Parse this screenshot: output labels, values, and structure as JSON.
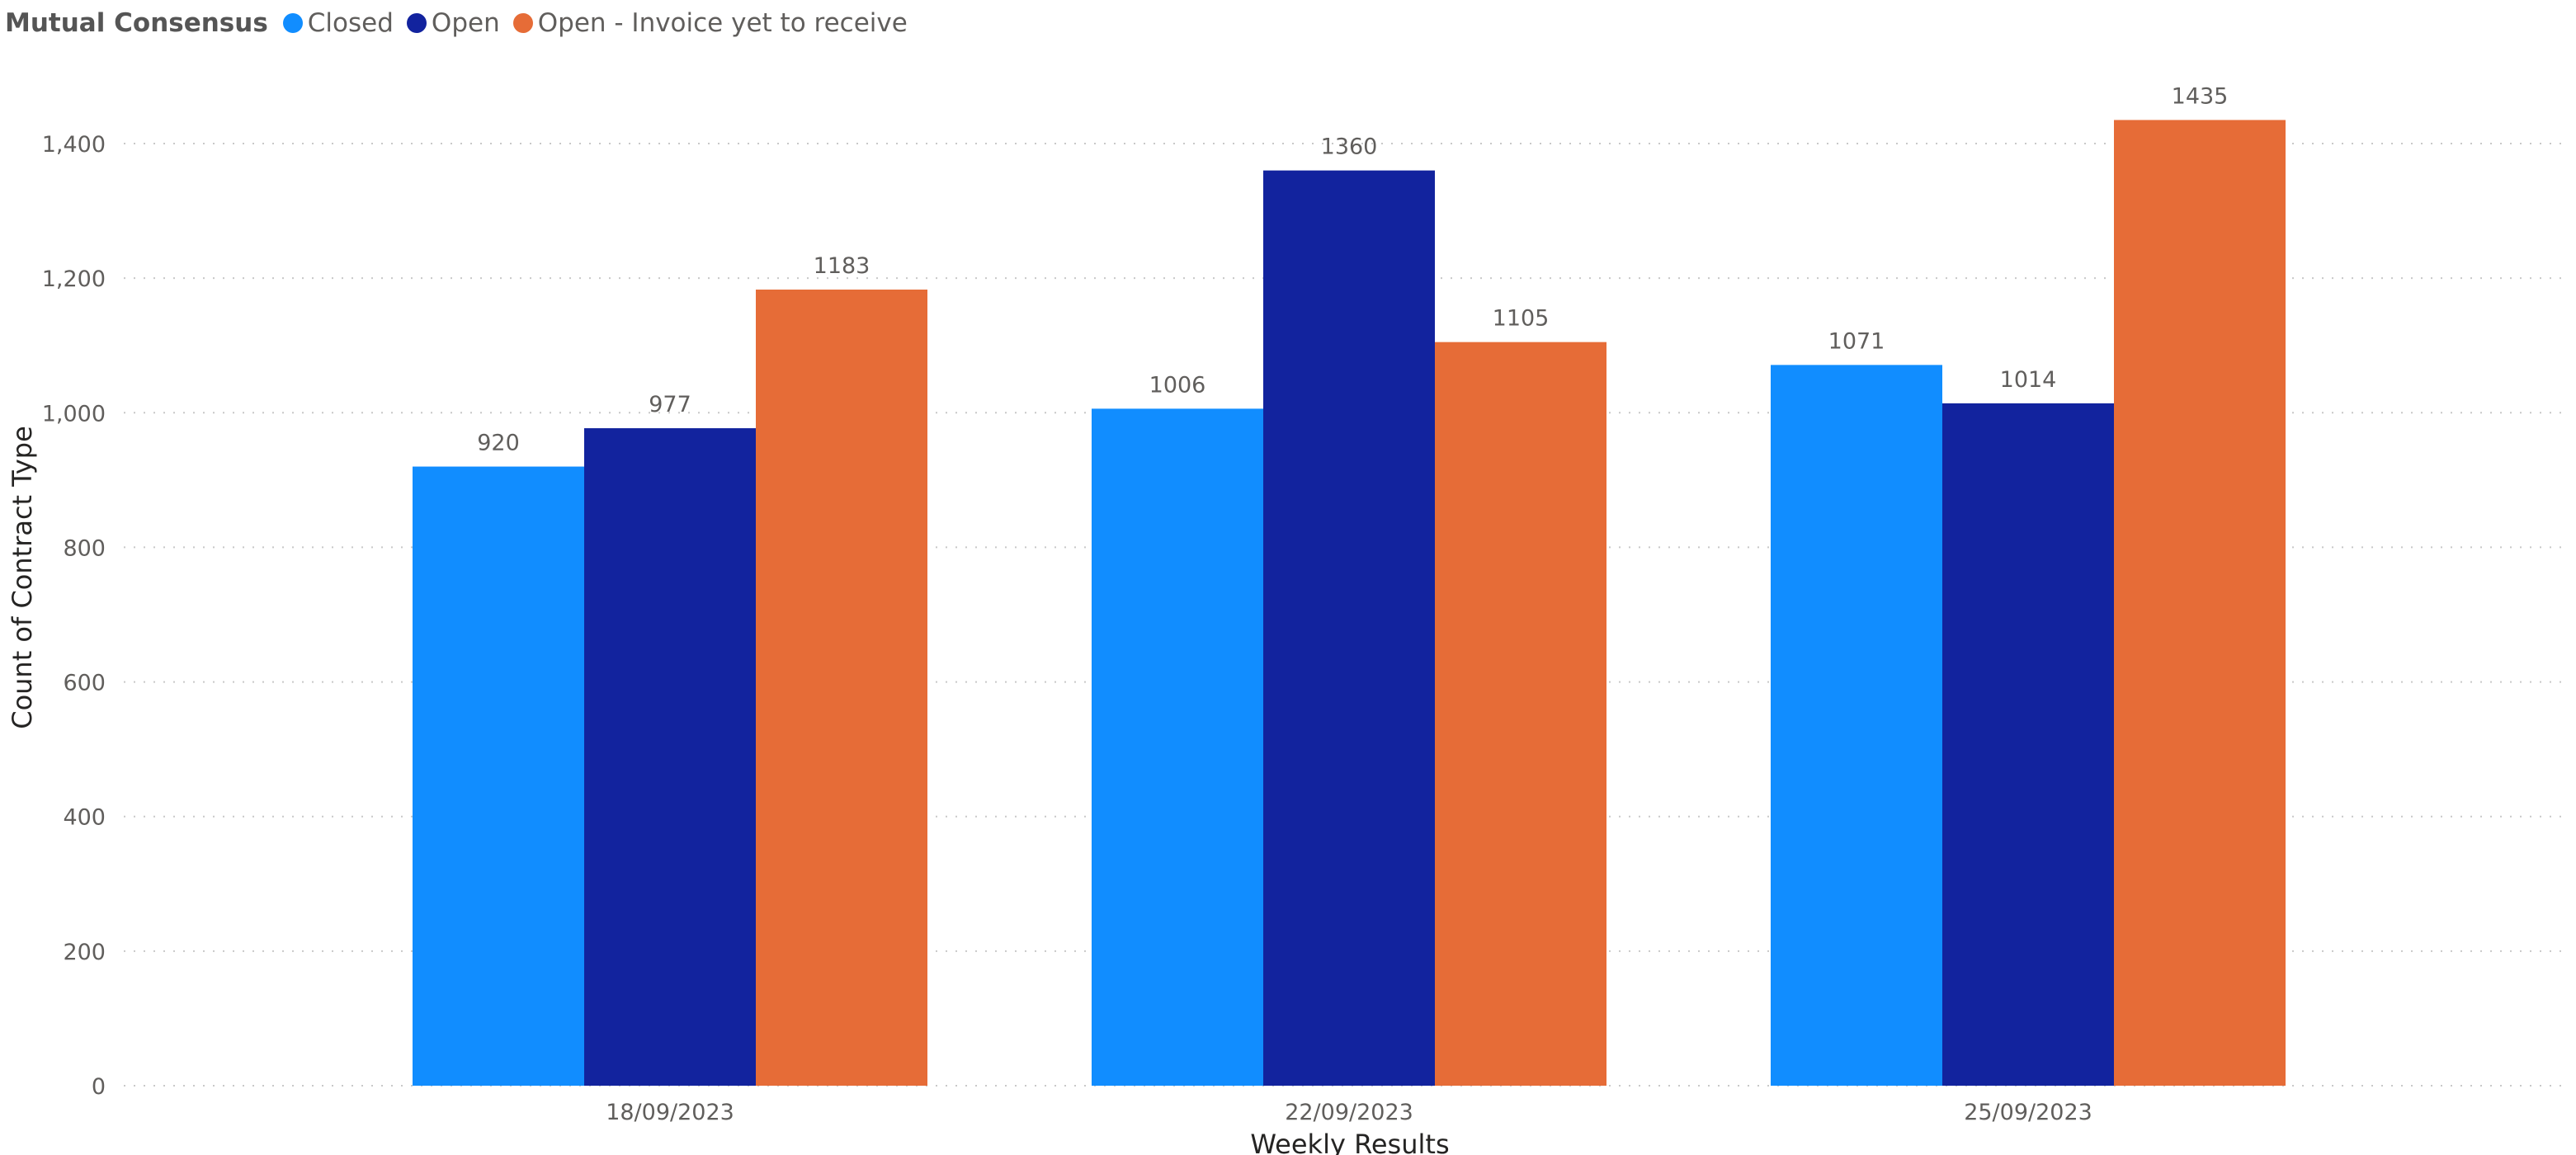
{
  "legend": {
    "title": "Mutual Consensus",
    "items": [
      {
        "label": "Closed",
        "color": "#118dff"
      },
      {
        "label": "Open",
        "color": "#12239e"
      },
      {
        "label": "Open - Invoice yet to receive",
        "color": "#e66c37"
      }
    ]
  },
  "chart_data": {
    "type": "bar",
    "categories": [
      "18/09/2023",
      "22/09/2023",
      "25/09/2023"
    ],
    "series": [
      {
        "name": "Closed",
        "values": [
          920,
          1006,
          1071
        ],
        "color": "#118dff"
      },
      {
        "name": "Open",
        "values": [
          977,
          1360,
          1014
        ],
        "color": "#12239e"
      },
      {
        "name": "Open - Invoice yet to receive",
        "values": [
          1183,
          1105,
          1435
        ],
        "color": "#e66c37"
      }
    ],
    "xlabel": "Weekly Results",
    "ylabel": "Count of Contract Type",
    "ylim": [
      0,
      1400
    ],
    "yticks": [
      "0",
      "200",
      "400",
      "600",
      "800",
      "1,000",
      "1,200",
      "1,400"
    ],
    "grid": true,
    "legend_position": "top-left"
  }
}
